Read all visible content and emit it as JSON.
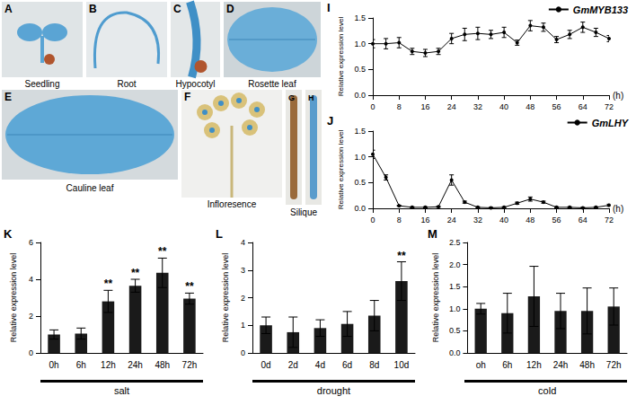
{
  "image_panels": [
    {
      "letter": "A",
      "label": "Seedling"
    },
    {
      "letter": "B",
      "label": "Root"
    },
    {
      "letter": "C",
      "label": "Hypocotyl"
    },
    {
      "letter": "D",
      "label": "Rosette leaf"
    },
    {
      "letter": "E",
      "label": "Cauline leaf"
    },
    {
      "letter": "F",
      "label": "Infloresence"
    },
    {
      "letter": "G"
    },
    {
      "letter": "H",
      "label": "Silique"
    }
  ],
  "chart_data": [
    {
      "panel": "I",
      "type": "line",
      "x": [
        0,
        4,
        8,
        12,
        16,
        20,
        24,
        28,
        32,
        36,
        40,
        44,
        48,
        52,
        56,
        60,
        64,
        68,
        72
      ],
      "series": [
        {
          "name": "GmMYB133",
          "color": "#000000",
          "marker": "circle",
          "values": [
            1.0,
            1.0,
            1.02,
            0.85,
            0.82,
            0.85,
            1.1,
            1.18,
            1.2,
            1.18,
            1.22,
            1.02,
            1.35,
            1.32,
            1.08,
            1.18,
            1.32,
            1.22,
            1.1
          ],
          "errors": [
            0.08,
            0.1,
            0.1,
            0.06,
            0.07,
            0.06,
            0.1,
            0.12,
            0.12,
            0.08,
            0.1,
            0.05,
            0.1,
            0.08,
            0.06,
            0.08,
            0.1,
            0.08,
            0.06
          ]
        }
      ],
      "xlim": [
        0,
        72
      ],
      "xticks": [
        0,
        8,
        16,
        24,
        32,
        40,
        48,
        56,
        64,
        72
      ],
      "xlabel": "(h)",
      "ylim": [
        0,
        1.5
      ],
      "yticks": [
        {
          "value": 0,
          "label": "0.0"
        },
        {
          "value": 0.5,
          "label": "0.5"
        },
        {
          "value": 1,
          "label": "1.0"
        },
        {
          "value": 1.5,
          "label": "1.5"
        }
      ],
      "ylabel": "Relative expression level",
      "grid": false,
      "legend": "top-right"
    },
    {
      "panel": "J",
      "type": "line",
      "x": [
        0,
        4,
        8,
        12,
        16,
        20,
        24,
        28,
        32,
        36,
        40,
        44,
        48,
        52,
        56,
        60,
        64,
        68,
        72
      ],
      "series": [
        {
          "name": "GmLHY",
          "color": "#000000",
          "marker": "circle",
          "values": [
            1.05,
            0.6,
            0.05,
            0.02,
            0.02,
            0.03,
            0.55,
            0.12,
            0.02,
            0.01,
            0.02,
            0.1,
            0.18,
            0.12,
            0.02,
            0.02,
            0.01,
            0.02,
            0.06
          ],
          "errors": [
            0.08,
            0.05,
            0.01,
            0.01,
            0.01,
            0.01,
            0.1,
            0.02,
            0.01,
            0.01,
            0.01,
            0.02,
            0.04,
            0.02,
            0.01,
            0.01,
            0.01,
            0.01,
            0.02
          ]
        }
      ],
      "xlim": [
        0,
        72
      ],
      "xticks": [
        0,
        8,
        16,
        24,
        32,
        40,
        48,
        56,
        64,
        72
      ],
      "xlabel": "(h)",
      "ylim": [
        0,
        1.5
      ],
      "yticks": [
        {
          "value": 0,
          "label": "0.0"
        },
        {
          "value": 0.5,
          "label": "0.5"
        },
        {
          "value": 1,
          "label": "1.0"
        },
        {
          "value": 1.5,
          "label": "1.5"
        }
      ],
      "ylabel": "Relative expression level",
      "grid": false,
      "legend": "top-right"
    },
    {
      "panel": "K",
      "type": "bar",
      "categories": [
        "0h",
        "6h",
        "12h",
        "24h",
        "48h",
        "72h"
      ],
      "values": [
        1.0,
        1.05,
        2.8,
        3.65,
        4.35,
        2.95
      ],
      "errors": [
        0.25,
        0.3,
        0.6,
        0.35,
        0.8,
        0.3
      ],
      "significance": [
        null,
        null,
        "**",
        "**",
        "**",
        "**"
      ],
      "color": "#1a1a1a",
      "xlabel": "salt",
      "ylim": [
        0,
        6
      ],
      "yticks": [
        0,
        2,
        4,
        6
      ],
      "ylabel": "Relative expression level",
      "grid": false
    },
    {
      "panel": "L",
      "type": "bar",
      "categories": [
        "0d",
        "2d",
        "4d",
        "6d",
        "8d",
        "10d"
      ],
      "values": [
        1.0,
        0.75,
        0.9,
        1.05,
        1.35,
        2.6
      ],
      "errors": [
        0.3,
        0.55,
        0.3,
        0.45,
        0.55,
        0.7
      ],
      "significance": [
        null,
        null,
        null,
        null,
        null,
        "**"
      ],
      "color": "#1a1a1a",
      "xlabel": "drought",
      "ylim": [
        0,
        4
      ],
      "yticks": [
        0,
        1,
        2,
        3,
        4
      ],
      "ylabel": "Relative expression level",
      "grid": false
    },
    {
      "panel": "M",
      "type": "bar",
      "categories": [
        "oh",
        "6h",
        "12h",
        "24h",
        "48h",
        "72h"
      ],
      "values": [
        1.0,
        0.9,
        1.28,
        0.95,
        0.95,
        1.05
      ],
      "errors": [
        0.12,
        0.45,
        0.68,
        0.4,
        0.52,
        0.42
      ],
      "significance": [
        null,
        null,
        null,
        null,
        null,
        null
      ],
      "color": "#1a1a1a",
      "xlabel": "cold",
      "ylim": [
        0,
        2.5
      ],
      "yticks": [
        {
          "value": 0,
          "label": "0.0"
        },
        {
          "value": 0.5,
          "label": "0.5"
        },
        {
          "value": 1,
          "label": "1.0"
        },
        {
          "value": 1.5,
          "label": "1.5"
        },
        {
          "value": 2,
          "label": "2.0"
        },
        {
          "value": 2.5,
          "label": "2.5"
        }
      ],
      "ylabel": "Relative expression level",
      "grid": false
    }
  ]
}
